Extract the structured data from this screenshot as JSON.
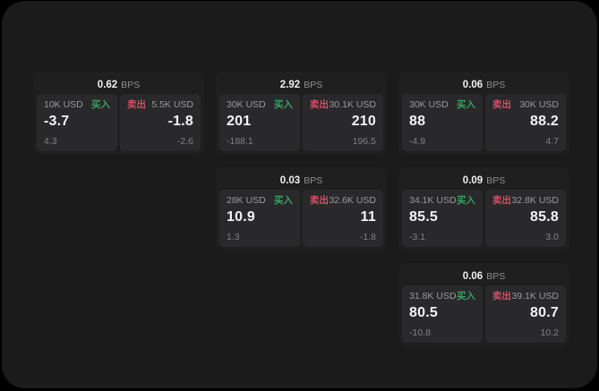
{
  "window": {
    "background": "#000000",
    "surface_background": "#1b1b1c"
  },
  "colors": {
    "card_background": "#1f1f20",
    "panel_background": "#29292b",
    "price_text": "#f4f4f4",
    "size_label_text": "#9a9a9a",
    "delta_text": "#808080",
    "bps_value_text": "#efefef",
    "bps_suffix_text": "#8f8f8f",
    "buy_green": "#3aa061",
    "sell_red": "#d15065"
  },
  "labels": {
    "bps_suffix": "BPS",
    "buy": "买入",
    "sell": "卖出"
  },
  "cards": [
    {
      "bps": "0.62",
      "buy": {
        "size": "10K USD",
        "price": "-3.7",
        "delta": "4.3"
      },
      "sell": {
        "size": "5.5K USD",
        "price": "-1.8",
        "delta": "-2.6"
      }
    },
    {
      "bps": "2.92",
      "buy": {
        "size": "30K USD",
        "price": "201",
        "delta": "-188.1"
      },
      "sell": {
        "size": "30.1K USD",
        "price": "210",
        "delta": "196.5"
      }
    },
    {
      "bps": "0.06",
      "buy": {
        "size": "30K USD",
        "price": "88",
        "delta": "-4.9"
      },
      "sell": {
        "size": "30K USD",
        "price": "88.2",
        "delta": "4.7"
      }
    },
    {
      "bps": "0.03",
      "buy": {
        "size": "28K USD",
        "price": "10.9",
        "delta": "1.3"
      },
      "sell": {
        "size": "32.6K USD",
        "price": "11",
        "delta": "-1.8"
      }
    },
    {
      "bps": "0.09",
      "buy": {
        "size": "34.1K USD",
        "price": "85.5",
        "delta": "-3.1"
      },
      "sell": {
        "size": "32.8K USD",
        "price": "85.8",
        "delta": "3.0"
      }
    },
    {
      "bps": "0.06",
      "buy": {
        "size": "31.8K USD",
        "price": "80.5",
        "delta": "-10.8"
      },
      "sell": {
        "size": "39.1K USD",
        "price": "80.7",
        "delta": "10.2"
      }
    }
  ]
}
